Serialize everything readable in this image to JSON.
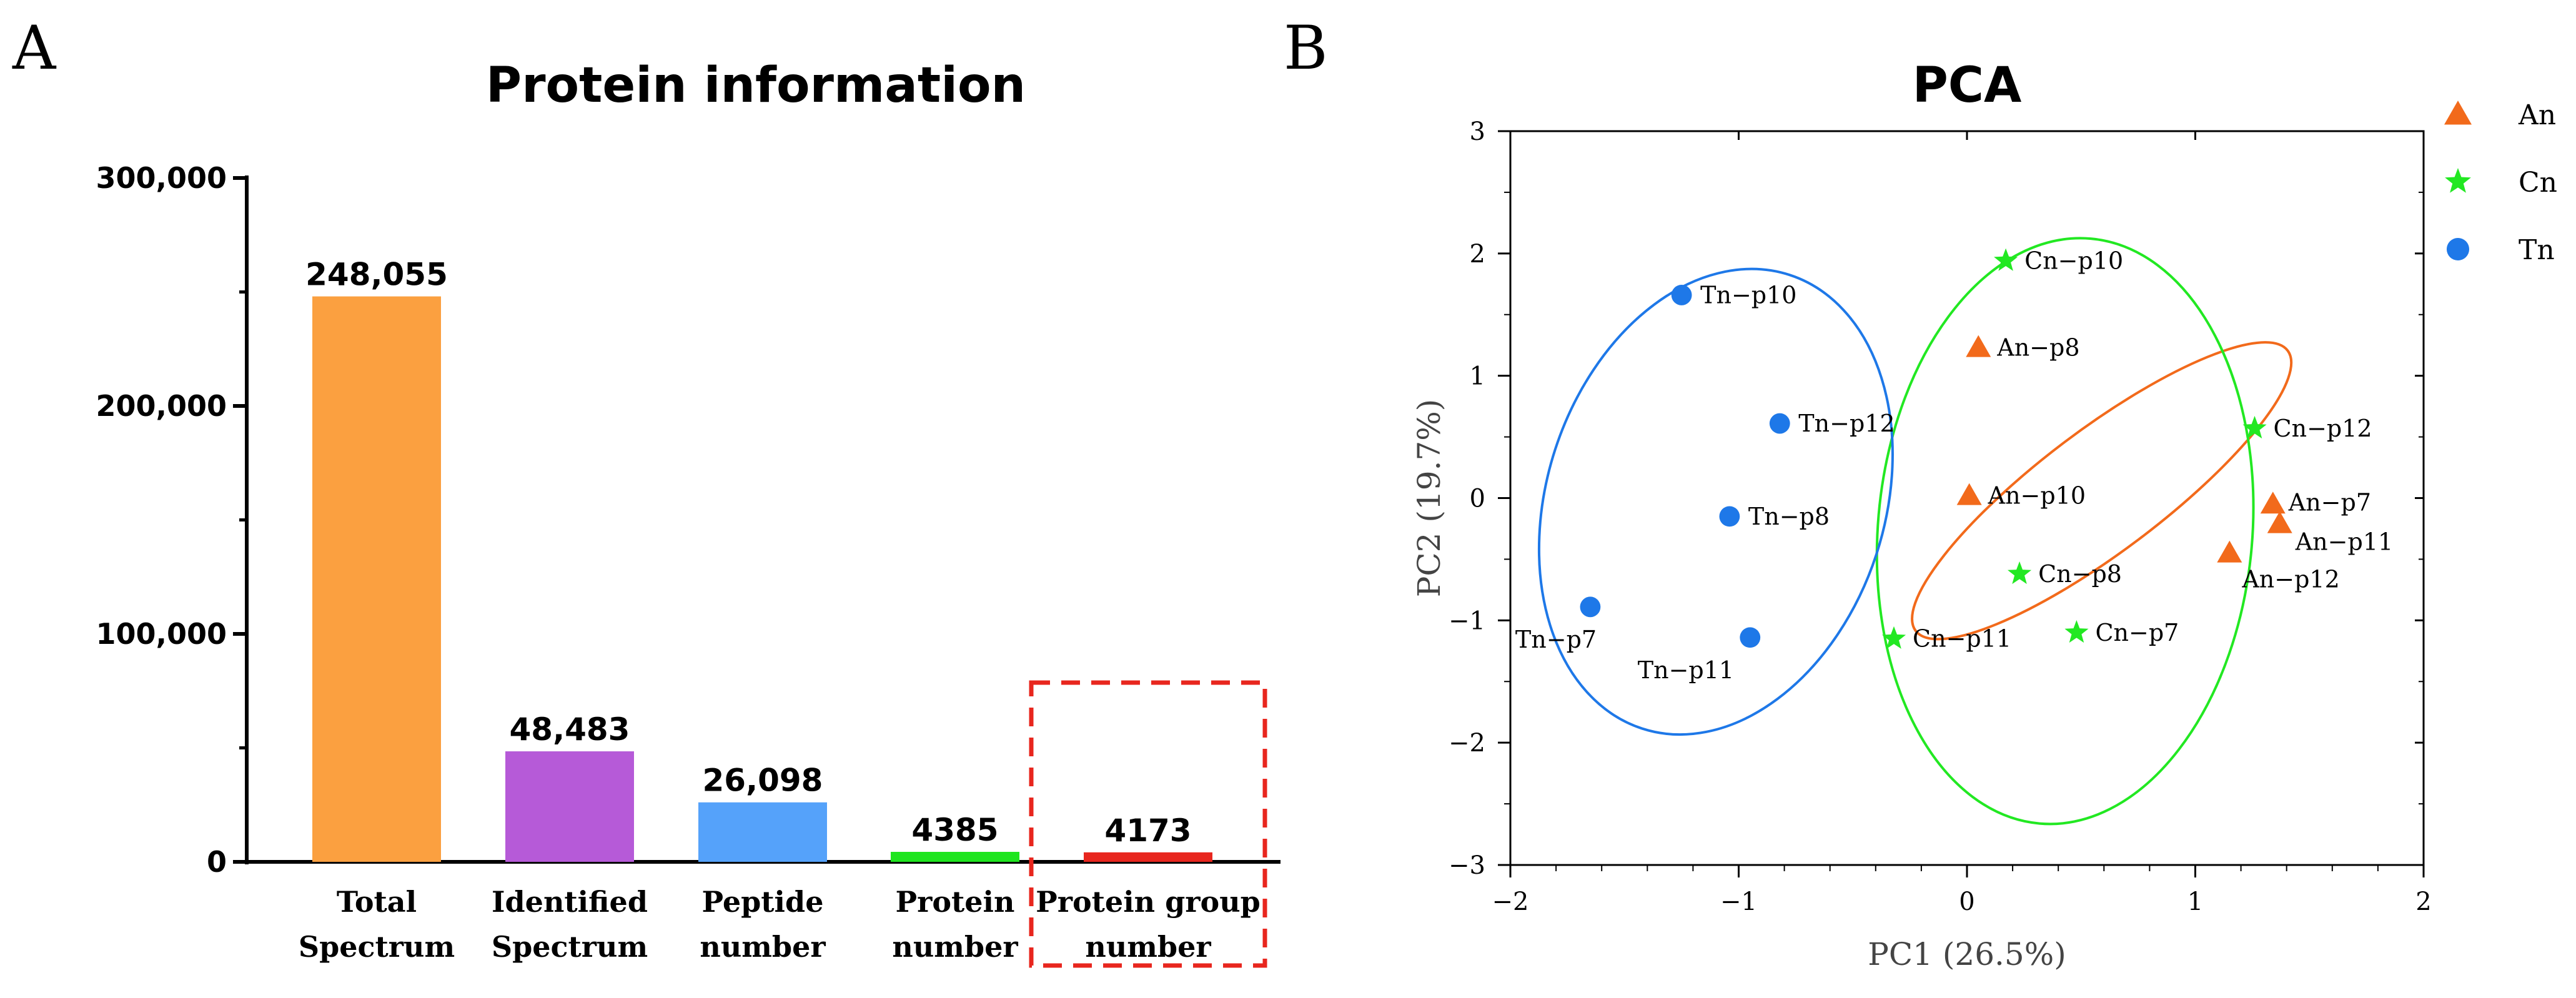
{
  "panels": {
    "a": "A",
    "b": "B"
  },
  "chart_data": [
    {
      "type": "bar",
      "title": "Protein information",
      "categories": [
        [
          "Total",
          "Spectrum"
        ],
        [
          "Identified",
          "Spectrum"
        ],
        [
          "Peptide",
          "number"
        ],
        [
          "Protein",
          "number"
        ],
        [
          "Protein group",
          "number"
        ]
      ],
      "values": [
        248055,
        48483,
        26098,
        4385,
        4173
      ],
      "value_labels": [
        "248,055",
        "48,483",
        "26,098",
        "4385",
        "4173"
      ],
      "colors": [
        "#FBA040",
        "#B65AD8",
        "#55A2FA",
        "#1FE51F",
        "#E8261E"
      ],
      "ylim": [
        0,
        300000
      ],
      "yticks": [
        0,
        100000,
        200000,
        300000
      ],
      "ytick_labels": [
        "0",
        "100,000",
        "200,000",
        "300,000"
      ],
      "highlight_category_index": 4,
      "highlight_color": "#E8261E"
    },
    {
      "type": "scatter",
      "title": "PCA",
      "xlabel": "PC1 (26.5%)",
      "ylabel": "PC2 (19.7%)",
      "xlim": [
        -2,
        2
      ],
      "ylim": [
        -3,
        3
      ],
      "xticks": [
        -2,
        -1,
        0,
        1,
        2
      ],
      "xtick_labels": [
        "−2",
        "−1",
        "0",
        "1",
        "2"
      ],
      "yticks": [
        -3,
        -2,
        -1,
        0,
        1,
        2,
        3
      ],
      "ytick_labels": [
        "−3",
        "−2",
        "−1",
        "0",
        "1",
        "2",
        "3"
      ],
      "legend_position": "top-right outside",
      "series": [
        {
          "name": "An",
          "marker": "triangle",
          "color": "#F26A1B",
          "points": [
            {
              "label": "An−p8",
              "x": 0.05,
              "y": 1.23
            },
            {
              "label": "An−p10",
              "x": 0.01,
              "y": 0.02
            },
            {
              "label": "An−p7",
              "x": 1.34,
              "y": -0.05
            },
            {
              "label": "An−p11",
              "x": 1.37,
              "y": -0.21
            },
            {
              "label": "An−p12",
              "x": 1.15,
              "y": -0.45
            }
          ],
          "ellipse": {
            "cx": 0.59,
            "cy": 0.06,
            "rx": 1.02,
            "ry": 0.5,
            "angle_deg": -37
          }
        },
        {
          "name": "Cn",
          "marker": "star",
          "color": "#22E822",
          "points": [
            {
              "label": "Cn−p10",
              "x": 0.17,
              "y": 1.94
            },
            {
              "label": "Cn−p12",
              "x": 1.26,
              "y": 0.57
            },
            {
              "label": "Cn−p8",
              "x": 0.23,
              "y": -0.62
            },
            {
              "label": "Cn−p11",
              "x": -0.32,
              "y": -1.15
            },
            {
              "label": "Cn−p7",
              "x": 0.48,
              "y": -1.1
            }
          ],
          "ellipse": {
            "cx": 0.43,
            "cy": -0.27,
            "rx": 0.82,
            "ry": 2.4,
            "angle_deg": 5
          }
        },
        {
          "name": "Tn",
          "marker": "circle",
          "color": "#1E78E8",
          "points": [
            {
              "label": "Tn−p10",
              "x": -1.25,
              "y": 1.66
            },
            {
              "label": "Tn−p12",
              "x": -0.82,
              "y": 0.61
            },
            {
              "label": "Tn−p8",
              "x": -1.04,
              "y": -0.15
            },
            {
              "label": "Tn−p7",
              "x": -1.65,
              "y": -0.89
            },
            {
              "label": "Tn−p11",
              "x": -0.95,
              "y": -1.14
            }
          ],
          "ellipse": {
            "cx": -1.1,
            "cy": -0.03,
            "rx": 0.74,
            "ry": 1.95,
            "angle_deg": 18
          }
        }
      ]
    }
  ]
}
